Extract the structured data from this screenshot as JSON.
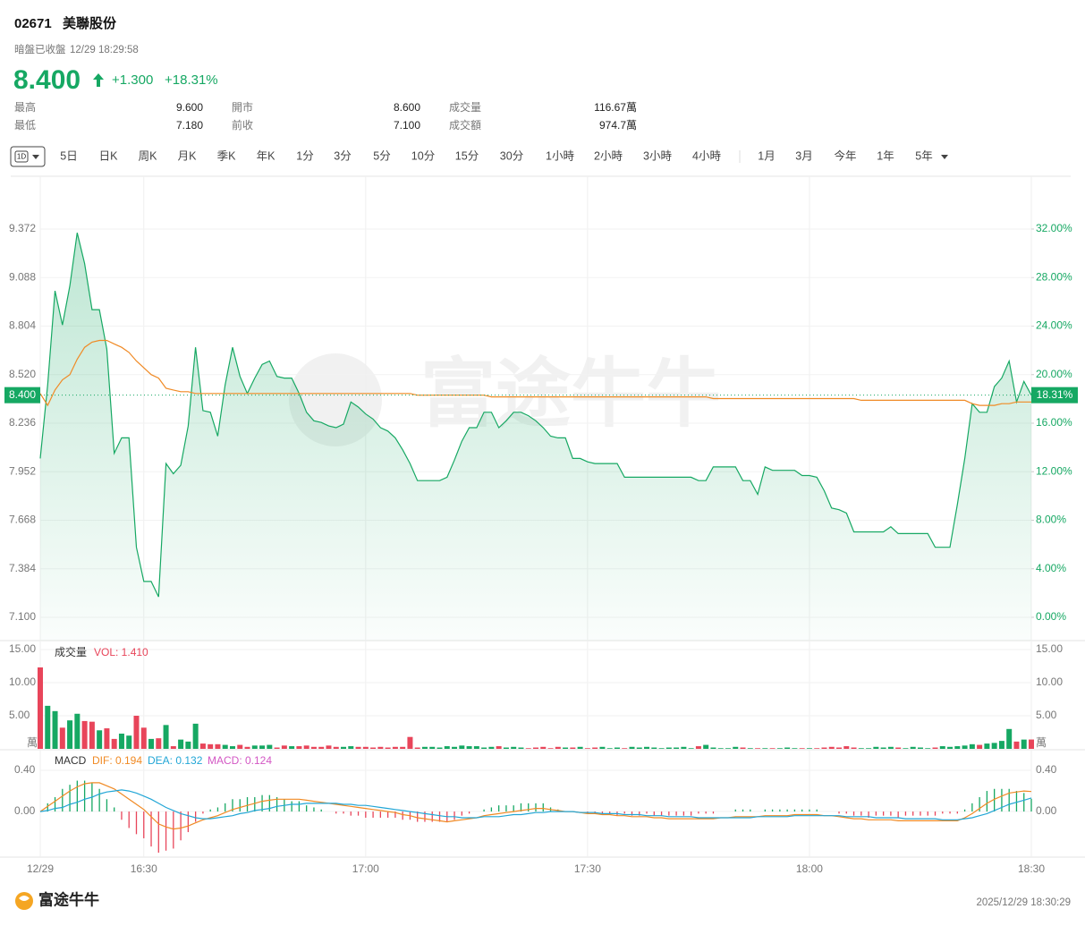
{
  "header": {
    "code": "02671",
    "name": "美聯股份",
    "status": "暗盤已收盤",
    "time": "12/29 18:29:58",
    "price": "8.400",
    "change": "+1.300",
    "change_pct": "+18.31%"
  },
  "stats": [
    [
      {
        "label": "最高",
        "value": "9.600"
      },
      {
        "label": "開市",
        "value": "8.600"
      },
      {
        "label": "成交量",
        "value": "116.67萬"
      }
    ],
    [
      {
        "label": "最低",
        "value": "7.180"
      },
      {
        "label": "前收",
        "value": "7.100"
      },
      {
        "label": "成交額",
        "value": "974.7萬"
      }
    ]
  ],
  "toolbar": {
    "selected": "1D",
    "periods": [
      "5日",
      "日K",
      "周K",
      "月K",
      "季K",
      "年K",
      "1分",
      "3分",
      "5分",
      "10分",
      "15分",
      "30分",
      "1小時",
      "2小時",
      "3小時",
      "4小時"
    ],
    "ranges": [
      "1月",
      "3月",
      "今年",
      "1年",
      "5年"
    ]
  },
  "watermark": "富途牛牛",
  "footer": {
    "brand": "富途牛牛",
    "timestamp": "2025/12/29 18:30:29"
  },
  "chart_data": [
    {
      "type": "line",
      "grid": true,
      "xlim": [
        0,
        134
      ],
      "xticks": [
        {
          "value": 0,
          "label": "12/29"
        },
        {
          "value": 14,
          "label": "16:30"
        },
        {
          "value": 44,
          "label": "17:00"
        },
        {
          "value": 74,
          "label": "17:30"
        },
        {
          "value": 104,
          "label": "18:00"
        },
        {
          "value": 134,
          "label": "18:30"
        }
      ],
      "ylim": [
        6.964,
        9.665
      ],
      "yticks": [
        {
          "value": 7.1,
          "label": "7.100"
        },
        7.384,
        7.668,
        7.952,
        8.236,
        {
          "value": 8.52,
          "label": "8.520"
        },
        8.804,
        9.088,
        9.372
      ],
      "y2lim": [
        -1.92,
        36.13
      ],
      "y2ticks": [
        {
          "value": 0,
          "label": "0.00%"
        },
        {
          "value": 4,
          "label": "4.00%"
        },
        {
          "value": 8,
          "label": "8.00%"
        },
        {
          "value": 12,
          "label": "12.00%"
        },
        {
          "value": 16,
          "label": "16.00%"
        },
        {
          "value": 20,
          "label": "20.00%"
        },
        {
          "value": 24,
          "label": "24.00%"
        },
        {
          "value": 28,
          "label": "28.00%"
        },
        {
          "value": 32,
          "label": "32.00%"
        }
      ],
      "last": {
        "value": 8.4,
        "label": "8.400"
      },
      "last_pct": {
        "value": 18.31,
        "label": "18.31%"
      },
      "series": [
        {
          "color": "#16a863",
          "area": true,
          "values": [
            8.03,
            8.46,
            9.01,
            8.81,
            9.04,
            9.35,
            9.17,
            8.9,
            8.9,
            8.67,
            8.06,
            8.15,
            8.15,
            7.51,
            7.31,
            7.31,
            7.22,
            8.0,
            7.94,
            7.99,
            8.22,
            8.68,
            8.31,
            8.3,
            8.16,
            8.46,
            8.68,
            8.51,
            8.41,
            8.5,
            8.58,
            8.6,
            8.51,
            8.5,
            8.5,
            8.41,
            8.3,
            8.25,
            8.24,
            8.22,
            8.21,
            8.23,
            8.36,
            8.33,
            8.29,
            8.26,
            8.21,
            8.19,
            8.15,
            8.08,
            8.0,
            7.9,
            7.9,
            7.9,
            7.9,
            7.92,
            8.02,
            8.13,
            8.21,
            8.21,
            8.3,
            8.3,
            8.21,
            8.25,
            8.3,
            8.3,
            8.28,
            8.25,
            8.21,
            8.16,
            8.15,
            8.15,
            8.03,
            8.03,
            8.01,
            8.0,
            8.0,
            8.0,
            8.0,
            7.92,
            7.92,
            7.92,
            7.92,
            7.92,
            7.92,
            7.92,
            7.92,
            7.92,
            7.92,
            7.9,
            7.9,
            7.98,
            7.98,
            7.98,
            7.98,
            7.9,
            7.9,
            7.82,
            7.98,
            7.96,
            7.96,
            7.96,
            7.96,
            7.93,
            7.93,
            7.92,
            7.84,
            7.74,
            7.73,
            7.71,
            7.6,
            7.6,
            7.6,
            7.6,
            7.6,
            7.63,
            7.59,
            7.59,
            7.59,
            7.59,
            7.59,
            7.51,
            7.51,
            7.51,
            7.76,
            8.03,
            8.35,
            8.3,
            8.3,
            8.45,
            8.5,
            8.6,
            8.36,
            8.48,
            8.4
          ]
        },
        {
          "color": "#f08a24",
          "values": [
            8.41,
            8.34,
            8.43,
            8.49,
            8.52,
            8.61,
            8.68,
            8.71,
            8.72,
            8.72,
            8.7,
            8.68,
            8.65,
            8.6,
            8.56,
            8.52,
            8.5,
            8.44,
            8.43,
            8.42,
            8.42,
            8.41,
            8.41,
            8.41,
            8.41,
            8.41,
            8.41,
            8.41,
            8.41,
            8.41,
            8.41,
            8.41,
            8.41,
            8.41,
            8.41,
            8.41,
            8.41,
            8.41,
            8.41,
            8.41,
            8.41,
            8.41,
            8.41,
            8.41,
            8.41,
            8.41,
            8.41,
            8.41,
            8.41,
            8.41,
            8.41,
            8.4,
            8.4,
            8.4,
            8.4,
            8.4,
            8.4,
            8.4,
            8.4,
            8.4,
            8.4,
            8.39,
            8.39,
            8.39,
            8.39,
            8.39,
            8.39,
            8.39,
            8.39,
            8.39,
            8.39,
            8.39,
            8.39,
            8.39,
            8.39,
            8.39,
            8.39,
            8.39,
            8.39,
            8.39,
            8.39,
            8.39,
            8.39,
            8.39,
            8.39,
            8.39,
            8.39,
            8.39,
            8.39,
            8.39,
            8.39,
            8.38,
            8.38,
            8.38,
            8.38,
            8.38,
            8.38,
            8.38,
            8.38,
            8.38,
            8.38,
            8.38,
            8.38,
            8.38,
            8.38,
            8.38,
            8.38,
            8.38,
            8.38,
            8.38,
            8.38,
            8.37,
            8.37,
            8.37,
            8.37,
            8.37,
            8.37,
            8.37,
            8.37,
            8.37,
            8.37,
            8.37,
            8.37,
            8.37,
            8.37,
            8.37,
            8.35,
            8.34,
            8.34,
            8.34,
            8.35,
            8.35,
            8.36,
            8.36,
            8.36
          ]
        }
      ]
    },
    {
      "type": "bar",
      "title": "成交量",
      "subtitle": "VOL: 1.410",
      "subtitle_color": "#e8455a",
      "unit": "萬",
      "xlim": [
        0,
        134
      ],
      "ylim": [
        0,
        16.08
      ],
      "yticks": [
        {
          "value": 5,
          "label": "5.00"
        },
        {
          "value": 10,
          "label": "10.00"
        },
        {
          "value": 15,
          "label": "15.00"
        }
      ],
      "up_color": "#16a863",
      "down_color": "#e8455a",
      "values": [
        12.3,
        6.5,
        5.7,
        3.2,
        4.3,
        5.3,
        4.2,
        4.1,
        2.8,
        3.1,
        1.5,
        2.3,
        2.0,
        5.0,
        3.2,
        1.5,
        1.6,
        3.6,
        0.4,
        1.4,
        1.1,
        3.8,
        0.8,
        0.7,
        0.7,
        0.6,
        0.4,
        0.6,
        0.3,
        0.5,
        0.5,
        0.6,
        0.2,
        0.5,
        0.4,
        0.4,
        0.5,
        0.3,
        0.3,
        0.5,
        0.3,
        0.3,
        0.4,
        0.3,
        0.3,
        0.2,
        0.3,
        0.2,
        0.3,
        0.3,
        1.8,
        0.2,
        0.3,
        0.3,
        0.2,
        0.4,
        0.3,
        0.5,
        0.4,
        0.4,
        0.2,
        0.3,
        0.4,
        0.2,
        0.3,
        0.2,
        0.1,
        0.2,
        0.3,
        0.1,
        0.3,
        0.2,
        0.2,
        0.3,
        0.1,
        0.2,
        0.3,
        0.1,
        0.2,
        0.1,
        0.3,
        0.2,
        0.3,
        0.2,
        0.1,
        0.2,
        0.2,
        0.3,
        0.1,
        0.4,
        0.6,
        0.2,
        0.1,
        0.1,
        0.3,
        0.2,
        0.1,
        0.1,
        0.1,
        0.1,
        0.1,
        0.2,
        0.1,
        0.1,
        0.1,
        0.1,
        0.2,
        0.3,
        0.2,
        0.4,
        0.2,
        0.1,
        0.1,
        0.3,
        0.2,
        0.3,
        0.2,
        0.1,
        0.3,
        0.2,
        0.1,
        0.2,
        0.4,
        0.3,
        0.4,
        0.5,
        0.7,
        0.6,
        0.8,
        0.9,
        1.2,
        3.0,
        1.1,
        1.4,
        1.41
      ]
    },
    {
      "type": "macd",
      "title": "MACD",
      "xlim": [
        0,
        134
      ],
      "ylim": [
        -0.443,
        0.557
      ],
      "yticks": [
        {
          "value": 0,
          "label": "0.00"
        },
        {
          "value": 0.4,
          "label": "0.40"
        }
      ],
      "series": [
        {
          "name": "DIF: 0.194",
          "color": "#f08a24",
          "values": [
            0,
            0.05,
            0.1,
            0.15,
            0.2,
            0.24,
            0.27,
            0.28,
            0.28,
            0.25,
            0.22,
            0.17,
            0.12,
            0.07,
            0.02,
            -0.05,
            -0.12,
            -0.15,
            -0.17,
            -0.16,
            -0.14,
            -0.11,
            -0.08,
            -0.06,
            -0.04,
            -0.01,
            0.02,
            0.04,
            0.06,
            0.08,
            0.1,
            0.11,
            0.12,
            0.12,
            0.12,
            0.12,
            0.11,
            0.1,
            0.09,
            0.08,
            0.07,
            0.06,
            0.05,
            0.04,
            0.03,
            0.02,
            0.01,
            0,
            -0.01,
            -0.03,
            -0.04,
            -0.06,
            -0.07,
            -0.08,
            -0.09,
            -0.1,
            -0.09,
            -0.08,
            -0.07,
            -0.06,
            -0.04,
            -0.03,
            -0.02,
            -0.01,
            0,
            0.01,
            0.02,
            0.03,
            0.03,
            0.02,
            0.01,
            0,
            0,
            -0.01,
            -0.02,
            -0.02,
            -0.03,
            -0.03,
            -0.04,
            -0.04,
            -0.05,
            -0.05,
            -0.05,
            -0.06,
            -0.06,
            -0.07,
            -0.07,
            -0.07,
            -0.07,
            -0.07,
            -0.07,
            -0.07,
            -0.06,
            -0.06,
            -0.05,
            -0.05,
            -0.05,
            -0.05,
            -0.04,
            -0.04,
            -0.04,
            -0.04,
            -0.03,
            -0.03,
            -0.03,
            -0.03,
            -0.04,
            -0.04,
            -0.05,
            -0.06,
            -0.07,
            -0.07,
            -0.08,
            -0.08,
            -0.08,
            -0.08,
            -0.09,
            -0.09,
            -0.09,
            -0.09,
            -0.09,
            -0.09,
            -0.09,
            -0.09,
            -0.09,
            -0.06,
            -0.02,
            0.03,
            0.08,
            0.12,
            0.15,
            0.18,
            0.19,
            0.2,
            0.194
          ]
        },
        {
          "name": "DEA: 0.132",
          "color": "#22a6d6",
          "values": [
            0,
            0.01,
            0.03,
            0.04,
            0.07,
            0.09,
            0.12,
            0.14,
            0.17,
            0.19,
            0.2,
            0.21,
            0.2,
            0.18,
            0.15,
            0.12,
            0.08,
            0.04,
            0.01,
            -0.02,
            -0.04,
            -0.06,
            -0.07,
            -0.07,
            -0.06,
            -0.05,
            -0.04,
            -0.02,
            -0.01,
            0.01,
            0.02,
            0.03,
            0.05,
            0.06,
            0.07,
            0.07,
            0.08,
            0.08,
            0.08,
            0.08,
            0.08,
            0.07,
            0.07,
            0.06,
            0.06,
            0.05,
            0.04,
            0.03,
            0.02,
            0.01,
            0,
            -0.01,
            -0.02,
            -0.03,
            -0.04,
            -0.05,
            -0.05,
            -0.06,
            -0.06,
            -0.06,
            -0.05,
            -0.05,
            -0.05,
            -0.04,
            -0.03,
            -0.03,
            -0.02,
            -0.01,
            -0.01,
            0,
            0,
            0,
            0,
            -0.01,
            -0.01,
            -0.01,
            -0.02,
            -0.02,
            -0.02,
            -0.03,
            -0.03,
            -0.03,
            -0.04,
            -0.04,
            -0.04,
            -0.05,
            -0.05,
            -0.05,
            -0.05,
            -0.06,
            -0.06,
            -0.06,
            -0.06,
            -0.06,
            -0.06,
            -0.06,
            -0.06,
            -0.05,
            -0.05,
            -0.05,
            -0.05,
            -0.05,
            -0.04,
            -0.04,
            -0.04,
            -0.04,
            -0.04,
            -0.04,
            -0.04,
            -0.05,
            -0.05,
            -0.05,
            -0.05,
            -0.06,
            -0.06,
            -0.06,
            -0.06,
            -0.07,
            -0.07,
            -0.07,
            -0.07,
            -0.07,
            -0.08,
            -0.08,
            -0.08,
            -0.07,
            -0.06,
            -0.04,
            -0.02,
            0.01,
            0.04,
            0.07,
            0.09,
            0.11,
            0.132
          ]
        },
        {
          "name": "MACD: 0.124",
          "color": "#d357c4",
          "up_color": "#16a863",
          "down_color": "#e8455a",
          "values": [
            0,
            0.08,
            0.14,
            0.22,
            0.26,
            0.3,
            0.3,
            0.28,
            0.22,
            0.12,
            0.04,
            -0.08,
            -0.16,
            -0.22,
            -0.26,
            -0.34,
            -0.4,
            -0.38,
            -0.36,
            -0.28,
            -0.2,
            -0.1,
            -0.02,
            0.02,
            0.04,
            0.08,
            0.12,
            0.12,
            0.14,
            0.14,
            0.16,
            0.16,
            0.14,
            0.12,
            0.1,
            0.1,
            0.06,
            0.04,
            0.02,
            0,
            -0.02,
            -0.02,
            -0.04,
            -0.04,
            -0.06,
            -0.06,
            -0.06,
            -0.06,
            -0.06,
            -0.08,
            -0.08,
            -0.1,
            -0.1,
            -0.1,
            -0.1,
            -0.1,
            -0.08,
            -0.04,
            -0.02,
            0,
            0.02,
            0.04,
            0.06,
            0.06,
            0.06,
            0.08,
            0.08,
            0.08,
            0.08,
            0.04,
            0.02,
            0,
            0,
            0,
            -0.02,
            -0.02,
            -0.02,
            -0.02,
            -0.04,
            -0.02,
            -0.04,
            -0.04,
            -0.02,
            -0.04,
            -0.04,
            -0.04,
            -0.04,
            -0.04,
            -0.04,
            -0.02,
            -0.02,
            -0.02,
            0,
            0,
            0.02,
            0.02,
            0.02,
            0,
            0.02,
            0.02,
            0.02,
            0.02,
            0.02,
            0.02,
            0.02,
            0.02,
            0,
            0,
            -0.02,
            -0.02,
            -0.04,
            -0.04,
            -0.06,
            -0.04,
            -0.04,
            -0.04,
            -0.06,
            -0.04,
            -0.04,
            -0.04,
            -0.04,
            -0.04,
            -0.02,
            -0.02,
            -0.02,
            0.02,
            0.08,
            0.14,
            0.2,
            0.22,
            0.22,
            0.22,
            0.2,
            0.18,
            0.124
          ]
        }
      ]
    }
  ]
}
